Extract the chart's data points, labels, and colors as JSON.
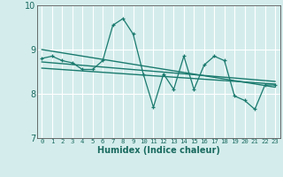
{
  "xlabel": "Humidex (Indice chaleur)",
  "background_color": "#d4edec",
  "grid_color": "#ffffff",
  "line_color": "#1a7a6e",
  "xlim": [
    -0.5,
    23.5
  ],
  "ylim": [
    7,
    10
  ],
  "yticks": [
    7,
    8,
    9,
    10
  ],
  "xticks": [
    0,
    1,
    2,
    3,
    4,
    5,
    6,
    7,
    8,
    9,
    10,
    11,
    12,
    13,
    14,
    15,
    16,
    17,
    18,
    19,
    20,
    21,
    22,
    23
  ],
  "series1_x": [
    0,
    1,
    2,
    3,
    4,
    5,
    6,
    7,
    8,
    9,
    10,
    11,
    12,
    13,
    14,
    15,
    16,
    17,
    18,
    19,
    20,
    21,
    22,
    23
  ],
  "series1_y": [
    8.8,
    8.85,
    8.75,
    8.7,
    8.55,
    8.55,
    8.75,
    9.55,
    9.7,
    9.35,
    8.45,
    7.7,
    8.45,
    8.1,
    8.85,
    8.1,
    8.65,
    8.85,
    8.75,
    7.95,
    7.85,
    7.65,
    8.2,
    8.2
  ],
  "trend1_x": [
    0,
    23
  ],
  "trend1_y": [
    9.0,
    8.15
  ],
  "trend2_x": [
    0,
    23
  ],
  "trend2_y": [
    8.72,
    8.28
  ],
  "trend3_x": [
    0,
    23
  ],
  "trend3_y": [
    8.58,
    8.22
  ]
}
